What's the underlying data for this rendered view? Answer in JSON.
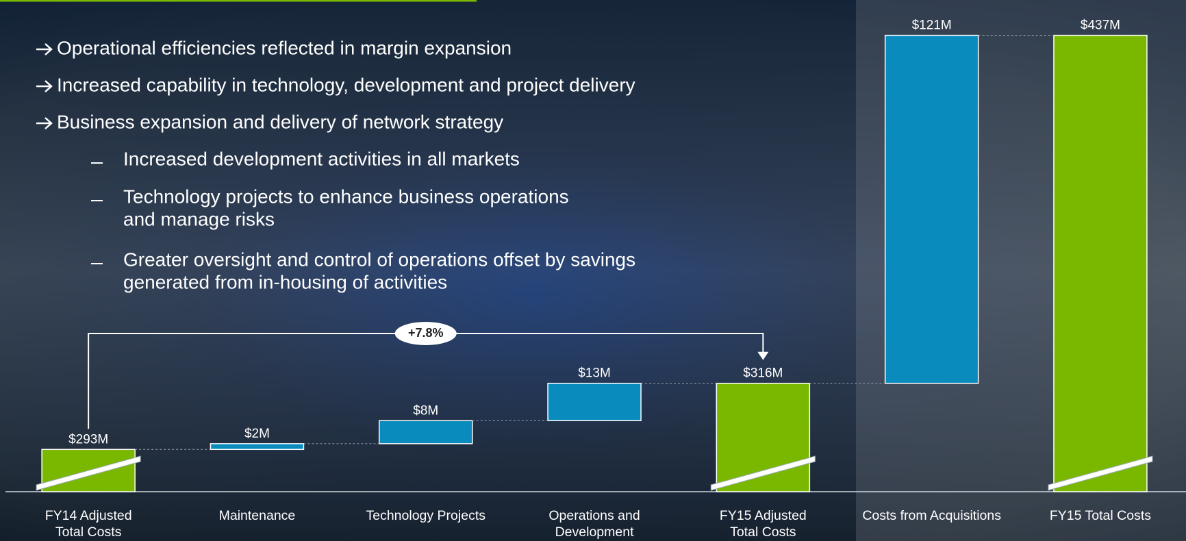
{
  "bullets": [
    "Operational efficiencies reflected in margin expansion",
    "Increased capability in technology, development and project delivery",
    "Business expansion and delivery of network strategy"
  ],
  "sub_bullets": [
    [
      "Increased development activities in all markets"
    ],
    [
      "Technology projects to enhance business operations",
      "and manage risks"
    ],
    [
      "Greater oversight and control of operations offset by savings",
      "generated from in-housing of activities"
    ]
  ],
  "chart_data": {
    "type": "waterfall",
    "categories": [
      [
        "FY14 Adjusted",
        "Total Costs"
      ],
      [
        "Maintenance"
      ],
      [
        "Technology Projects"
      ],
      [
        "Operations and",
        "Development"
      ],
      [
        "FY15 Adjusted",
        "Total Costs"
      ],
      [
        "Costs from Acquisitions"
      ],
      [
        "FY15 Total Costs"
      ]
    ],
    "values": [
      293,
      2,
      8,
      13,
      316,
      121,
      437
    ],
    "value_labels": [
      "$293M",
      "$2M",
      "$8M",
      "$13M",
      "$316M",
      "$121M",
      "$437M"
    ],
    "kinds": [
      "total",
      "increase",
      "increase",
      "increase",
      "total",
      "increase",
      "total"
    ],
    "colors": {
      "total": "#7ab800",
      "increase": "#0a8bbd"
    },
    "ylim": [
      278.3,
      440
    ],
    "axis_break": true,
    "annotation": {
      "text": "+7.8%",
      "from": 0,
      "to": 4
    }
  }
}
